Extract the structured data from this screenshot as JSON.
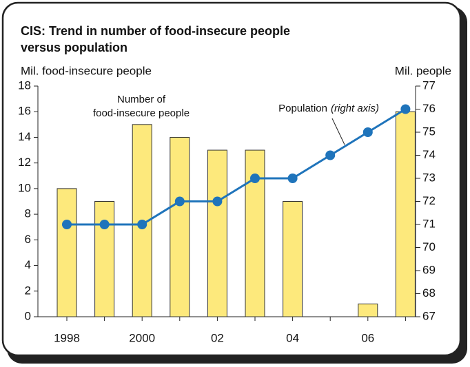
{
  "chart_data": {
    "type": "bar",
    "title": [
      "CIS: Trend in number of food-insecure people",
      "versus population"
    ],
    "y_label": "Mil. food-insecure people",
    "y2_label": "Mil. people",
    "annotations": {
      "bars": [
        "Number of",
        "food-insecure people"
      ],
      "line": "Population",
      "line_note": "(right axis)"
    },
    "categories": [
      "1998",
      null,
      "2000",
      null,
      "02",
      null,
      "04",
      null,
      "06",
      null
    ],
    "series": [
      {
        "name": "Number of food-insecure people",
        "type": "bar",
        "color": "#fde97c",
        "values": [
          10,
          9,
          15,
          14,
          13,
          13,
          9,
          0,
          1,
          16
        ]
      },
      {
        "name": "Population",
        "type": "line",
        "axis": "y2",
        "color": "#1f74bb",
        "values": [
          71,
          71,
          71,
          72,
          72,
          73,
          73,
          74,
          75,
          76
        ]
      }
    ],
    "ylim": [
      0,
      18
    ],
    "yticks": [
      0,
      2,
      4,
      6,
      8,
      10,
      12,
      14,
      16,
      18
    ],
    "y2lim": [
      67,
      77
    ],
    "y2ticks": [
      67,
      68,
      69,
      70,
      71,
      72,
      73,
      74,
      75,
      76,
      77
    ]
  }
}
